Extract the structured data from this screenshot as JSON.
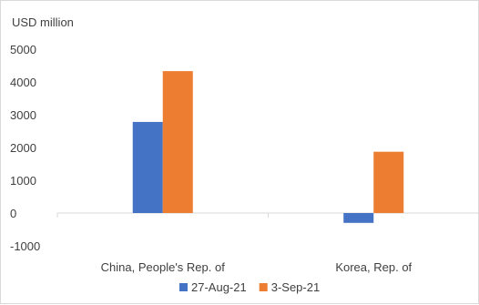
{
  "chart_data": {
    "type": "bar",
    "ylabel": "USD million",
    "categories": [
      "China, People's Rep. of",
      "Korea, Rep. of"
    ],
    "series": [
      {
        "name": "27-Aug-21",
        "values": [
          2780,
          -300
        ],
        "color": "#4472C4"
      },
      {
        "name": "3-Sep-21",
        "values": [
          4330,
          1870
        ],
        "color": "#ED7D31"
      }
    ],
    "ylim": [
      -1000,
      5000
    ],
    "yticks": [
      -1000,
      0,
      1000,
      2000,
      3000,
      4000,
      5000
    ],
    "grid": false,
    "legend_position": "bottom"
  }
}
